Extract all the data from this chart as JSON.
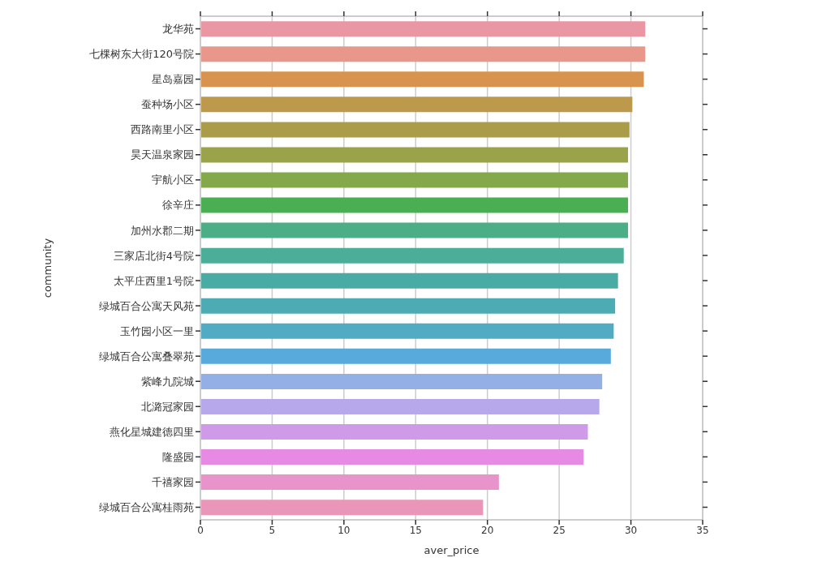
{
  "chart_data": {
    "type": "bar",
    "orientation": "horizontal",
    "xlabel": "aver_price",
    "ylabel": "community",
    "categories": [
      "龙华苑",
      "七棵树东大街120号院",
      "星岛嘉园",
      "蚕种场小区",
      "西路南里小区",
      "昊天温泉家园",
      "宇航小区",
      "徐辛庄",
      "加州水郡二期",
      "三家店北街4号院",
      "太平庄西里1号院",
      "绿城百合公寓天风苑",
      "玉竹园小区一里",
      "绿城百合公寓叠翠苑",
      "紫峰九院城",
      "北潞冠家园",
      "燕化星城建德四里",
      "隆盛园",
      "千禧家园",
      "绿城百合公寓桂雨苑"
    ],
    "values": [
      31.0,
      31.0,
      30.9,
      30.1,
      29.9,
      29.8,
      29.8,
      29.8,
      29.8,
      29.5,
      29.1,
      28.9,
      28.8,
      28.6,
      28.0,
      27.8,
      27.0,
      26.7,
      20.8,
      19.7
    ],
    "colors": [
      "#ea96a3",
      "#e8978a",
      "#d8944f",
      "#bd9a4b",
      "#ab9c49",
      "#9aa34a",
      "#84a94b",
      "#4aaf52",
      "#4bae86",
      "#4aae98",
      "#4aaaa4",
      "#4dacb3",
      "#50abc3",
      "#57aadb",
      "#94aee6",
      "#b7a8ec",
      "#cf9ae7",
      "#e68ae4",
      "#e993cb",
      "#e996b9"
    ],
    "xlim": [
      0,
      35
    ],
    "xticks": [
      0,
      5,
      10,
      15,
      20,
      25,
      30,
      35
    ],
    "grid": "x"
  }
}
